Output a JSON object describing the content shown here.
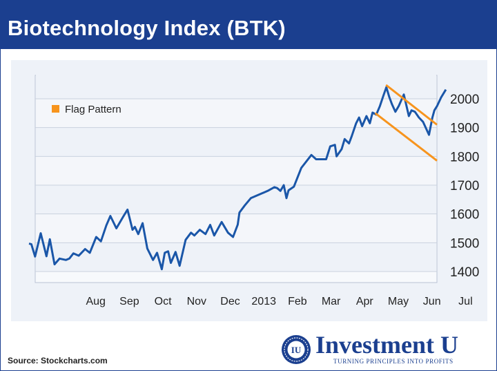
{
  "header": {
    "title": "Biotechnology Index (BTK)"
  },
  "source": "Source: Stockcharts.com",
  "logo": {
    "name": "Investment U",
    "tagline": "TURNING PRINCIPLES INTO PROFITS",
    "seal_text": "IU"
  },
  "colors": {
    "header_bg": "#1b3f8f",
    "series_line": "#1a56a8",
    "flag": "#f7941d",
    "plot_bg": "#eef2f8"
  },
  "chart_data": {
    "type": "line",
    "title": "Biotechnology Index (BTK)",
    "xlabel": "",
    "ylabel": "",
    "ylim": [
      1380,
      2060
    ],
    "xlim": [
      0,
      12.8
    ],
    "y_ticks": [
      1400,
      1500,
      1600,
      1700,
      1800,
      1900,
      2000
    ],
    "x_tick_labels": [
      {
        "label": "Aug",
        "x": 1
      },
      {
        "label": "Sep",
        "x": 2
      },
      {
        "label": "Oct",
        "x": 3
      },
      {
        "label": "Nov",
        "x": 4
      },
      {
        "label": "Dec",
        "x": 5
      },
      {
        "label": "2013",
        "x": 6
      },
      {
        "label": "Feb",
        "x": 7
      },
      {
        "label": "Mar",
        "x": 8
      },
      {
        "label": "Apr",
        "x": 9
      },
      {
        "label": "May",
        "x": 10
      },
      {
        "label": "Jun",
        "x": 11
      },
      {
        "label": "Jul",
        "x": 12
      }
    ],
    "grid": true,
    "legend": {
      "position": "top-left",
      "entries": [
        {
          "name": "Flag Pattern"
        }
      ]
    },
    "series": [
      {
        "points": [
          [
            0.0,
            1497
          ],
          [
            0.07,
            1495
          ],
          [
            0.18,
            1452
          ],
          [
            0.35,
            1533
          ],
          [
            0.52,
            1453
          ],
          [
            0.62,
            1512
          ],
          [
            0.76,
            1425
          ],
          [
            0.91,
            1445
          ],
          [
            1.1,
            1440
          ],
          [
            1.2,
            1445
          ],
          [
            1.32,
            1463
          ],
          [
            1.48,
            1455
          ],
          [
            1.67,
            1478
          ],
          [
            1.81,
            1465
          ],
          [
            2.0,
            1520
          ],
          [
            2.14,
            1505
          ],
          [
            2.3,
            1560
          ],
          [
            2.42,
            1593
          ],
          [
            2.6,
            1550
          ],
          [
            2.8,
            1590
          ],
          [
            2.93,
            1615
          ],
          [
            3.08,
            1545
          ],
          [
            3.15,
            1555
          ],
          [
            3.25,
            1530
          ],
          [
            3.38,
            1568
          ],
          [
            3.52,
            1480
          ],
          [
            3.69,
            1440
          ],
          [
            3.81,
            1465
          ],
          [
            3.95,
            1408
          ],
          [
            4.04,
            1465
          ],
          [
            4.14,
            1470
          ],
          [
            4.22,
            1430
          ],
          [
            4.36,
            1468
          ],
          [
            4.48,
            1420
          ],
          [
            4.66,
            1510
          ],
          [
            4.82,
            1535
          ],
          [
            4.92,
            1525
          ],
          [
            5.08,
            1545
          ],
          [
            5.25,
            1530
          ],
          [
            5.39,
            1562
          ],
          [
            5.51,
            1525
          ],
          [
            5.73,
            1572
          ],
          [
            5.92,
            1535
          ],
          [
            6.07,
            1520
          ],
          [
            6.21,
            1563
          ],
          [
            6.26,
            1605
          ],
          [
            6.42,
            1630
          ],
          [
            6.6,
            1655
          ],
          [
            7.1,
            1680
          ],
          [
            7.3,
            1693
          ],
          [
            7.38,
            1690
          ],
          [
            7.48,
            1680
          ],
          [
            7.58,
            1700
          ],
          [
            7.66,
            1655
          ],
          [
            7.72,
            1682
          ],
          [
            7.88,
            1695
          ],
          [
            8.1,
            1760
          ],
          [
            8.4,
            1805
          ],
          [
            8.54,
            1790
          ],
          [
            8.84,
            1790
          ],
          [
            8.96,
            1835
          ],
          [
            9.1,
            1840
          ],
          [
            9.15,
            1800
          ],
          [
            9.3,
            1825
          ],
          [
            9.39,
            1860
          ],
          [
            9.52,
            1845
          ],
          [
            9.6,
            1870
          ],
          [
            9.73,
            1915
          ],
          [
            9.82,
            1935
          ],
          [
            9.91,
            1905
          ],
          [
            10.04,
            1940
          ],
          [
            10.14,
            1915
          ],
          [
            10.22,
            1952
          ],
          [
            10.33,
            1945
          ],
          [
            10.44,
            1975
          ],
          [
            10.54,
            2010
          ],
          [
            10.63,
            2040
          ],
          [
            10.72,
            2005
          ],
          [
            10.8,
            1980
          ],
          [
            10.9,
            1955
          ],
          [
            11.0,
            1975
          ],
          [
            11.15,
            2015
          ],
          [
            11.23,
            1975
          ],
          [
            11.3,
            1940
          ],
          [
            11.38,
            1960
          ],
          [
            11.48,
            1955
          ],
          [
            11.6,
            1935
          ],
          [
            11.72,
            1920
          ],
          [
            11.9,
            1875
          ],
          [
            12.0,
            1935
          ],
          [
            12.06,
            1960
          ],
          [
            12.14,
            1975
          ],
          [
            12.26,
            2005
          ],
          [
            12.4,
            2032
          ]
        ]
      }
    ],
    "flag_lines": [
      {
        "from": [
          10.62,
          2048
        ],
        "to": [
          12.8,
          1910
        ]
      },
      {
        "from": [
          10.3,
          1950
        ],
        "to": [
          12.8,
          1785
        ]
      }
    ]
  }
}
